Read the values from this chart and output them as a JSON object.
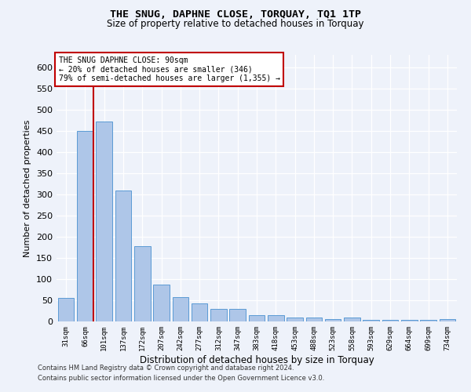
{
  "title": "THE SNUG, DAPHNE CLOSE, TORQUAY, TQ1 1TP",
  "subtitle": "Size of property relative to detached houses in Torquay",
  "xlabel": "Distribution of detached houses by size in Torquay",
  "ylabel": "Number of detached properties",
  "categories": [
    "31sqm",
    "66sqm",
    "101sqm",
    "137sqm",
    "172sqm",
    "207sqm",
    "242sqm",
    "277sqm",
    "312sqm",
    "347sqm",
    "383sqm",
    "418sqm",
    "453sqm",
    "488sqm",
    "523sqm",
    "558sqm",
    "593sqm",
    "629sqm",
    "664sqm",
    "699sqm",
    "734sqm"
  ],
  "values": [
    55,
    450,
    472,
    310,
    177,
    88,
    58,
    43,
    30,
    30,
    15,
    15,
    10,
    10,
    6,
    9,
    3,
    3,
    3,
    3,
    5
  ],
  "bar_color": "#aec6e8",
  "bar_edge_color": "#5b9bd5",
  "highlight_color": "#c00000",
  "annotation_line1": "THE SNUG DAPHNE CLOSE: 90sqm",
  "annotation_line2": "← 20% of detached houses are smaller (346)",
  "annotation_line3": "79% of semi-detached houses are larger (1,355) →",
  "annotation_box_color": "#c00000",
  "background_color": "#eef2fa",
  "grid_color": "#ffffff",
  "ylim": [
    0,
    630
  ],
  "yticks": [
    0,
    50,
    100,
    150,
    200,
    250,
    300,
    350,
    400,
    450,
    500,
    550,
    600
  ],
  "footer_line1": "Contains HM Land Registry data © Crown copyright and database right 2024.",
  "footer_line2": "Contains public sector information licensed under the Open Government Licence v3.0."
}
